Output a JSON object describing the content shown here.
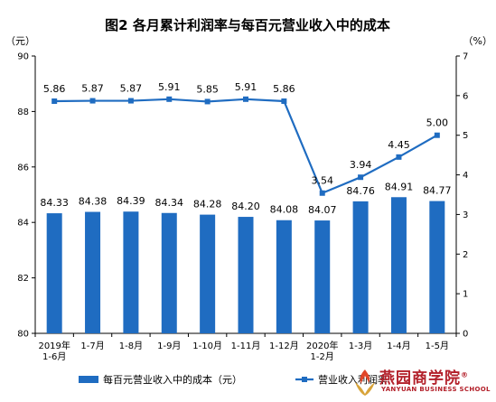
{
  "chart_data": {
    "type": "bar+line",
    "title": "图2  各月累计利润率与每百元营业收入中的成本",
    "categories": [
      [
        "2019年",
        "1-6月"
      ],
      [
        "1-7月"
      ],
      [
        "1-8月"
      ],
      [
        "1-9月"
      ],
      [
        "1-10月"
      ],
      [
        "1-11月"
      ],
      [
        "1-12月"
      ],
      [
        "2020年",
        "1-2月"
      ],
      [
        "1-3月"
      ],
      [
        "1-4月"
      ],
      [
        "1-5月"
      ]
    ],
    "left_axis": {
      "unit": "（元）",
      "ylim": [
        80,
        90
      ],
      "ticks": [
        80,
        82,
        84,
        86,
        88,
        90
      ]
    },
    "right_axis": {
      "unit": "（%）",
      "ylim": [
        0,
        7
      ],
      "ticks": [
        0,
        1,
        2,
        3,
        4,
        5,
        6,
        7
      ]
    },
    "series": [
      {
        "name": "每百元营业收入中的成本（元）",
        "kind": "bar",
        "axis": "left",
        "values": [
          84.33,
          84.38,
          84.39,
          84.34,
          84.28,
          84.2,
          84.08,
          84.07,
          84.76,
          84.91,
          84.77
        ],
        "labels": [
          "84.33",
          "84.38",
          "84.39",
          "84.34",
          "84.28",
          "84.20",
          "84.08",
          "84.07",
          "84.76",
          "84.91",
          "84.77"
        ]
      },
      {
        "name": "营业收入利润率",
        "kind": "line",
        "axis": "right",
        "values": [
          5.86,
          5.87,
          5.87,
          5.91,
          5.85,
          5.91,
          5.86,
          3.54,
          3.94,
          4.45,
          5.0
        ],
        "labels": [
          "5.86",
          "5.87",
          "5.87",
          "5.91",
          "5.85",
          "5.91",
          "5.86",
          "3.54",
          "3.94",
          "4.45",
          "5.00"
        ]
      }
    ],
    "colors": {
      "bar": "#1f6cc1",
      "line": "#1f6cc1"
    },
    "legend": {
      "placement": "bottom",
      "items": [
        "每百元营业收入中的成本（元）",
        "营业收入利润率"
      ]
    },
    "grid": false
  },
  "watermark": {
    "brand": "燕园商学院",
    "mark": "®",
    "sub": "YANYUAN BUSINESS SCHOOL",
    "icon": "torch-emblem-icon"
  }
}
